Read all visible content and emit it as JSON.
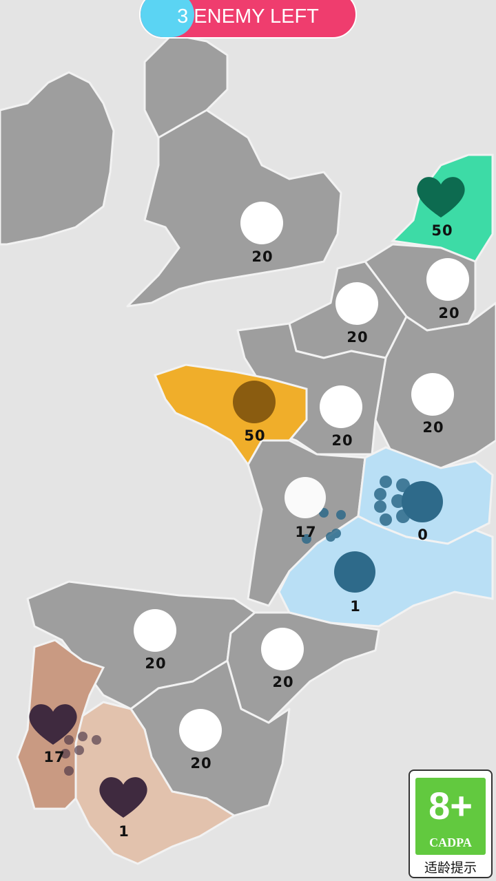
{
  "header": {
    "enemy_left_label": "3 ENEMY LEFT"
  },
  "colors": {
    "banner_red": "#ef3d6e",
    "banner_blue": "#5bd4f3",
    "neutral": "#9e9e9e",
    "green_team": "#3ddba6",
    "orange_team": "#f0ae2a",
    "blue_team": "#b9dff5",
    "brown_team": "#c99a82"
  },
  "territories": [
    {
      "name": "england",
      "owner": "neutral",
      "troops": "20"
    },
    {
      "name": "netherlands",
      "owner": "green",
      "icon": "heart-icon",
      "troops": "50"
    },
    {
      "name": "belgium",
      "owner": "neutral",
      "troops": "20"
    },
    {
      "name": "north-france",
      "owner": "neutral",
      "troops": "20"
    },
    {
      "name": "normandy",
      "owner": "neutral",
      "troops": "20"
    },
    {
      "name": "east-france",
      "owner": "neutral",
      "troops": "20"
    },
    {
      "name": "brittany",
      "owner": "orange",
      "troops": "50"
    },
    {
      "name": "west-france",
      "owner": "neutral",
      "troops": "17"
    },
    {
      "name": "central-france",
      "owner": "blue",
      "troops": "0"
    },
    {
      "name": "south-france",
      "owner": "blue",
      "troops": "1"
    },
    {
      "name": "north-spain",
      "owner": "neutral",
      "troops": "20"
    },
    {
      "name": "catalonia",
      "owner": "neutral",
      "troops": "20"
    },
    {
      "name": "central-spain",
      "owner": "neutral",
      "troops": "20"
    },
    {
      "name": "portugal",
      "owner": "brown",
      "icon": "heart-icon",
      "troops": "17"
    },
    {
      "name": "andalusia",
      "owner": "brown",
      "icon": "heart-icon",
      "troops": "1"
    }
  ],
  "age_rating": {
    "age": "8+",
    "org": "CADPA",
    "tip": "适龄提示"
  }
}
